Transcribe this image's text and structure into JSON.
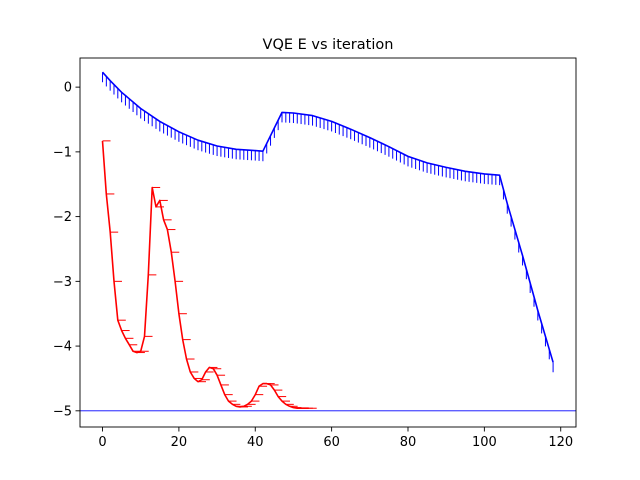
{
  "chart_data": {
    "type": "line",
    "title": "VQE E vs iteration",
    "xlabel": "",
    "ylabel": "",
    "xlim": [
      -5.9,
      124
    ],
    "ylim": [
      -5.25,
      0.45
    ],
    "xticks": [
      0,
      20,
      40,
      60,
      80,
      100,
      120
    ],
    "yticks": [
      0,
      -1,
      -2,
      -3,
      -4,
      -5
    ],
    "grid": false,
    "legend": false,
    "reference_line": {
      "y": -5.0,
      "color": "#0000ff"
    },
    "series": [
      {
        "color": "#0000ff",
        "error_marker": "vertical-down",
        "x": [
          0,
          2,
          5,
          10,
          15,
          20,
          25,
          30,
          35,
          40,
          42,
          47,
          50,
          55,
          60,
          65,
          70,
          75,
          80,
          85,
          90,
          95,
          100,
          104,
          106,
          110,
          114,
          118
        ],
        "y": [
          0.23,
          0.1,
          -0.08,
          -0.33,
          -0.53,
          -0.69,
          -0.82,
          -0.91,
          -0.96,
          -0.98,
          -0.99,
          -0.39,
          -0.4,
          -0.44,
          -0.53,
          -0.65,
          -0.78,
          -0.92,
          -1.07,
          -1.17,
          -1.24,
          -1.3,
          -1.34,
          -1.36,
          -1.8,
          -2.6,
          -3.45,
          -4.25
        ]
      },
      {
        "color": "#ff0000",
        "error_marker": "horizontal-right",
        "x": [
          0,
          1,
          2,
          3,
          4,
          5,
          6,
          7,
          8,
          9,
          10,
          11,
          12,
          13,
          14,
          15,
          16,
          17,
          18,
          19,
          20,
          21,
          22,
          23,
          24,
          25,
          26,
          27,
          28,
          29,
          30,
          31,
          32,
          33,
          34,
          35,
          36,
          37,
          38,
          39,
          40,
          41,
          42,
          43,
          44,
          45,
          46,
          47,
          48,
          49,
          50,
          51,
          52,
          53,
          54
        ],
        "y": [
          -0.83,
          -1.65,
          -2.24,
          -3.0,
          -3.6,
          -3.76,
          -3.88,
          -3.98,
          -4.08,
          -4.1,
          -4.08,
          -3.85,
          -2.9,
          -1.55,
          -1.85,
          -1.75,
          -2.05,
          -2.2,
          -2.55,
          -3.0,
          -3.5,
          -3.9,
          -4.2,
          -4.4,
          -4.5,
          -4.55,
          -4.52,
          -4.4,
          -4.33,
          -4.35,
          -4.45,
          -4.6,
          -4.75,
          -4.85,
          -4.9,
          -4.93,
          -4.94,
          -4.93,
          -4.9,
          -4.85,
          -4.75,
          -4.62,
          -4.58,
          -4.58,
          -4.6,
          -4.68,
          -4.78,
          -4.85,
          -4.9,
          -4.93,
          -4.95,
          -4.96,
          -4.96,
          -4.96,
          -4.96
        ]
      }
    ]
  }
}
